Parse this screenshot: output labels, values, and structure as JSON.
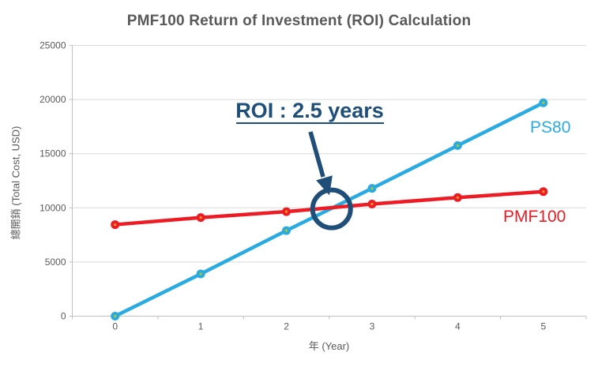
{
  "chart_data": {
    "type": "line",
    "title": "PMF100 Return of Investment (ROI) Calculation",
    "xlabel": "年 (Year)",
    "ylabel": "總開銷 (Total Cost, USD)",
    "x": [
      0,
      1,
      2,
      3,
      4,
      5
    ],
    "series": [
      {
        "name": "PS80",
        "color": "#29ABE2",
        "marker_center": "#B5C41E",
        "values": [
          0,
          3900,
          7900,
          11800,
          15750,
          19700
        ],
        "label": {
          "x": 671,
          "y": 168
        }
      },
      {
        "name": "PMF100",
        "color": "#ED1C24",
        "marker_center": "#F59A23",
        "values": [
          8450,
          9100,
          9650,
          10350,
          10950,
          11500
        ],
        "label": {
          "x": 637,
          "y": 281
        }
      }
    ],
    "ylim": [
      0,
      25000
    ],
    "ytick_step": 5000,
    "ytick_labels": [
      "0",
      "5000",
      "10000",
      "15000",
      "20000",
      "25000"
    ],
    "xtick_labels": [
      "0",
      "1",
      "2",
      "3",
      "4",
      "5"
    ],
    "grid": true,
    "legend_position": "inline-labels-right",
    "annotation": {
      "text": "ROI : 2.5 years",
      "color": "#1F4E79",
      "points_to": {
        "x_year": 2.5,
        "y_value": 9900
      }
    }
  },
  "colors": {
    "background": "#FFFFFF",
    "gridline": "#D9D9D9",
    "axis_line": "#BFBFBF",
    "tick_text": "#595959",
    "title_text": "#595959",
    "annotation": "#1F4E79"
  }
}
